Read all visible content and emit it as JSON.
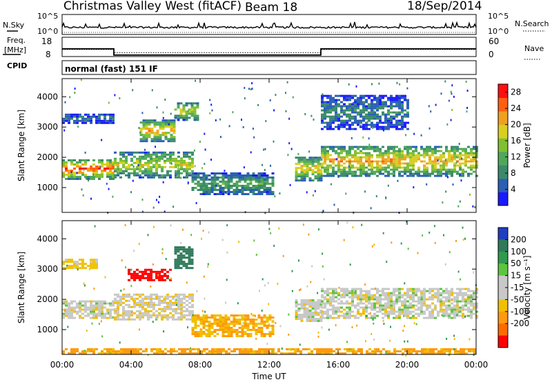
{
  "header": {
    "station": "Christmas Valley West (fitACF)",
    "beam": "Beam 18",
    "date": "18/Sep/2014"
  },
  "panels": {
    "nsky_label": "N.Sky",
    "nsky_ticks": [
      "10^5",
      "10^0"
    ],
    "nsearch_label": "N.Search",
    "nsearch_ticks": [
      "10^5",
      "10^0"
    ],
    "freq_label": [
      "Freq.",
      "[MHz]"
    ],
    "freq_ticks": [
      "18",
      "8"
    ],
    "nave_label": "Nave",
    "nave_ticks": [
      "60",
      "0"
    ],
    "cpid_label": "CPID",
    "cpid_text": "normal (fast) 151 IF"
  },
  "colors": {
    "power_scale": [
      "#1a1aff",
      "#2a5fb5",
      "#3a8a6a",
      "#4fa85a",
      "#80c030",
      "#d8cf20",
      "#f0a020",
      "#ff6010",
      "#ff1010"
    ],
    "velocity_scale": [
      "#ff0000",
      "#ff6a00",
      "#ff9a10",
      "#f0c000",
      "#c8c8c8",
      "#c8c8c8",
      "#5ec43e",
      "#2f9a4e",
      "#2f7a5a",
      "#1f3ec0"
    ]
  },
  "chart_data": [
    {
      "type": "line",
      "name": "top-time-series",
      "x_unit": "hours UT",
      "series": [
        {
          "name": "Freq.",
          "x": [
            0,
            3,
            3,
            15,
            15,
            24
          ],
          "y": [
            12,
            12,
            8.8,
            8.8,
            12,
            12
          ]
        },
        {
          "name": "Nave",
          "x": [
            0,
            3,
            3,
            15,
            15,
            24
          ],
          "y": [
            22,
            22,
            12,
            12,
            22,
            22
          ]
        }
      ]
    },
    {
      "type": "heatmap",
      "name": "power",
      "xlabel": "",
      "ylabel": "Slant Range [km]",
      "xlim": [
        0,
        24
      ],
      "ylim": [
        180,
        4600
      ],
      "yticks": [
        1000,
        2000,
        3000,
        4000
      ],
      "colorbar": {
        "label": "Power [dB]",
        "ticks": [
          4,
          8,
          12,
          16,
          20,
          24,
          28
        ],
        "range": [
          0,
          30
        ]
      },
      "regions": [
        {
          "t0": 0.0,
          "t1": 2.9,
          "r0": 1250,
          "r1": 1900,
          "value": 27
        },
        {
          "t0": 0.0,
          "t1": 2.9,
          "r0": 3100,
          "r1": 3400,
          "value": 7
        },
        {
          "t0": 3.0,
          "t1": 7.5,
          "r0": 1300,
          "r1": 2150,
          "value": 18
        },
        {
          "t0": 4.5,
          "t1": 6.5,
          "r0": 2500,
          "r1": 3200,
          "value": 22
        },
        {
          "t0": 6.5,
          "t1": 7.8,
          "r0": 3200,
          "r1": 3800,
          "value": 18
        },
        {
          "t0": 7.5,
          "t1": 12.3,
          "r0": 750,
          "r1": 1450,
          "value": 12
        },
        {
          "t0": 13.5,
          "t1": 15.0,
          "r0": 1200,
          "r1": 2000,
          "value": 20
        },
        {
          "t0": 15.0,
          "t1": 24.0,
          "r0": 1350,
          "r1": 2350,
          "value": 22
        },
        {
          "t0": 15.0,
          "t1": 20.0,
          "r0": 2900,
          "r1": 4000,
          "value": 8
        }
      ]
    },
    {
      "type": "heatmap",
      "name": "velocity",
      "xlabel": "Time UT",
      "ylabel": "Slant Range [km]",
      "xlim": [
        0,
        24
      ],
      "ylim": [
        180,
        4600
      ],
      "xticks": [
        "00:00",
        "04:00",
        "08:00",
        "12:00",
        "16:00",
        "20:00",
        "00:00"
      ],
      "yticks": [
        1000,
        2000,
        3000,
        4000
      ],
      "colorbar": {
        "label": "Velocity [m s⁻¹]",
        "ticks": [
          200,
          100,
          50,
          15,
          -15,
          -50,
          -100,
          -200
        ]
      },
      "regions": [
        {
          "t0": 0.0,
          "t1": 2.9,
          "r0": 1350,
          "r1": 1900,
          "value": 0
        },
        {
          "t0": 0.0,
          "t1": 2.0,
          "r0": 3000,
          "r1": 3300,
          "value": -30
        },
        {
          "t0": 3.0,
          "t1": 7.5,
          "r0": 1300,
          "r1": 2150,
          "value": -5
        },
        {
          "t0": 3.8,
          "t1": 6.3,
          "r0": 2600,
          "r1": 3000,
          "value": -220
        },
        {
          "t0": 6.5,
          "t1": 7.6,
          "r0": 3000,
          "r1": 3700,
          "value": 180
        },
        {
          "t0": 7.5,
          "t1": 12.3,
          "r0": 750,
          "r1": 1450,
          "value": -50
        },
        {
          "t0": 13.5,
          "t1": 15.0,
          "r0": 1250,
          "r1": 2000,
          "value": 0
        },
        {
          "t0": 15.0,
          "t1": 24.0,
          "r0": 1350,
          "r1": 2350,
          "value": 0
        },
        {
          "t0": 0.0,
          "t1": 24.0,
          "r0": 180,
          "r1": 380,
          "value": -60
        }
      ]
    }
  ]
}
